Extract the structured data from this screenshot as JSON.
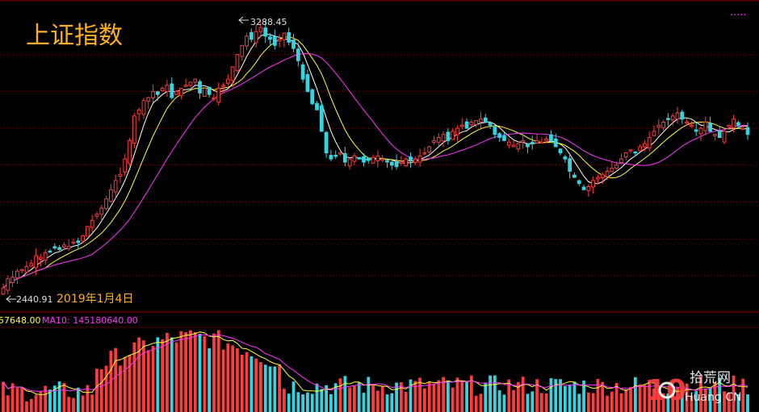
{
  "chart_data": {
    "type": "candlestick",
    "title": "上证指数",
    "high_label": "3288.45",
    "low_label": "2440.91",
    "low_date_label": "2019年1月4日",
    "volume_labels": {
      "ma5_text": "57648.00",
      "ma10_text": "MA10: 145180640.00"
    },
    "legend_dots": "·····",
    "colors": {
      "up": "#ff3b3b",
      "down": "#35d4e0",
      "ma_short": "#ffffff",
      "ma_mid": "#ffff33",
      "ma_long": "#ff33ff",
      "title": "#ffb020",
      "grid": "#7a0000",
      "frame": "#8a0000"
    },
    "price_range": [
      2380,
      3320
    ],
    "price_gridlines": [
      2480,
      2600,
      2720,
      2840,
      2960,
      3080,
      3200
    ],
    "closes": [
      2440,
      2470,
      2475,
      2495,
      2500,
      2510,
      2520,
      2545,
      2540,
      2555,
      2560,
      2570,
      2565,
      2580,
      2575,
      2590,
      2588,
      2610,
      2640,
      2660,
      2680,
      2700,
      2730,
      2760,
      2790,
      2810,
      2860,
      2920,
      3000,
      3020,
      3050,
      3060,
      3080,
      3070,
      3090,
      3100,
      3060,
      3080,
      3090,
      3100,
      3110,
      3120,
      3075,
      3090,
      3070,
      3060,
      3090,
      3100,
      3120,
      3160,
      3200,
      3230,
      3260,
      3250,
      3275,
      3288,
      3260,
      3250,
      3230,
      3250,
      3270,
      3240,
      3220,
      3180,
      3120,
      3080,
      3040,
      3020,
      2950,
      2880,
      2860,
      2870,
      2880,
      2850,
      2860,
      2870,
      2860,
      2850,
      2855,
      2865,
      2870,
      2860,
      2850,
      2840,
      2835,
      2850,
      2860,
      2855,
      2860,
      2870,
      2880,
      2900,
      2920,
      2930,
      2940,
      2920,
      2950,
      2960,
      2970,
      2960,
      2980,
      2985,
      2990,
      2980,
      2970,
      2940,
      2930,
      2920,
      2915,
      2905,
      2910,
      2920,
      2900,
      2910,
      2920,
      2915,
      2925,
      2920,
      2900,
      2880,
      2860,
      2820,
      2800,
      2780,
      2760,
      2770,
      2790,
      2800,
      2810,
      2820,
      2830,
      2840,
      2860,
      2880,
      2890,
      2880,
      2900,
      2910,
      2930,
      2950,
      2970,
      2980,
      2990,
      3000,
      3010,
      2990,
      2980,
      2970,
      2950,
      2960,
      2980,
      2950,
      2940,
      2930,
      2950,
      2970,
      2990,
      2970,
      2960,
      2940
    ]
  }
}
